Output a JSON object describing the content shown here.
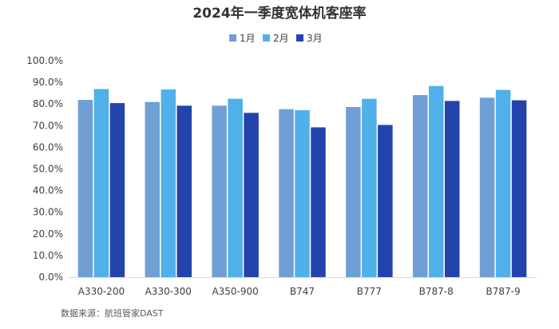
{
  "chart_data": {
    "type": "bar",
    "title": "2024年一季度宽体机客座率",
    "categories": [
      "A330-200",
      "A330-300",
      "A350-900",
      "B747",
      "B777",
      "B787-8",
      "B787-9"
    ],
    "series": [
      {
        "name": "1月",
        "color": "#6f9fd5",
        "values": [
          81.9,
          80.9,
          79.2,
          77.6,
          78.6,
          84.1,
          82.9
        ]
      },
      {
        "name": "2月",
        "color": "#4fb0ea",
        "values": [
          86.9,
          86.7,
          82.4,
          77.1,
          82.4,
          88.3,
          86.5
        ]
      },
      {
        "name": "3月",
        "color": "#2343ad",
        "values": [
          80.4,
          79.2,
          75.9,
          69.2,
          70.3,
          81.4,
          81.7
        ]
      }
    ],
    "ylim": [
      0,
      100
    ],
    "yticks": [
      0,
      10,
      20,
      30,
      40,
      50,
      60,
      70,
      80,
      90,
      100
    ],
    "ytick_labels": [
      "0.0%",
      "10.0%",
      "20.0%",
      "30.0%",
      "40.0%",
      "50.0%",
      "60.0%",
      "70.0%",
      "80.0%",
      "90.0%",
      "100.0%"
    ],
    "xlabel": "",
    "ylabel": "",
    "grid": false,
    "legend_position": "top-center",
    "source": "数据来源：航班管家DAST"
  }
}
